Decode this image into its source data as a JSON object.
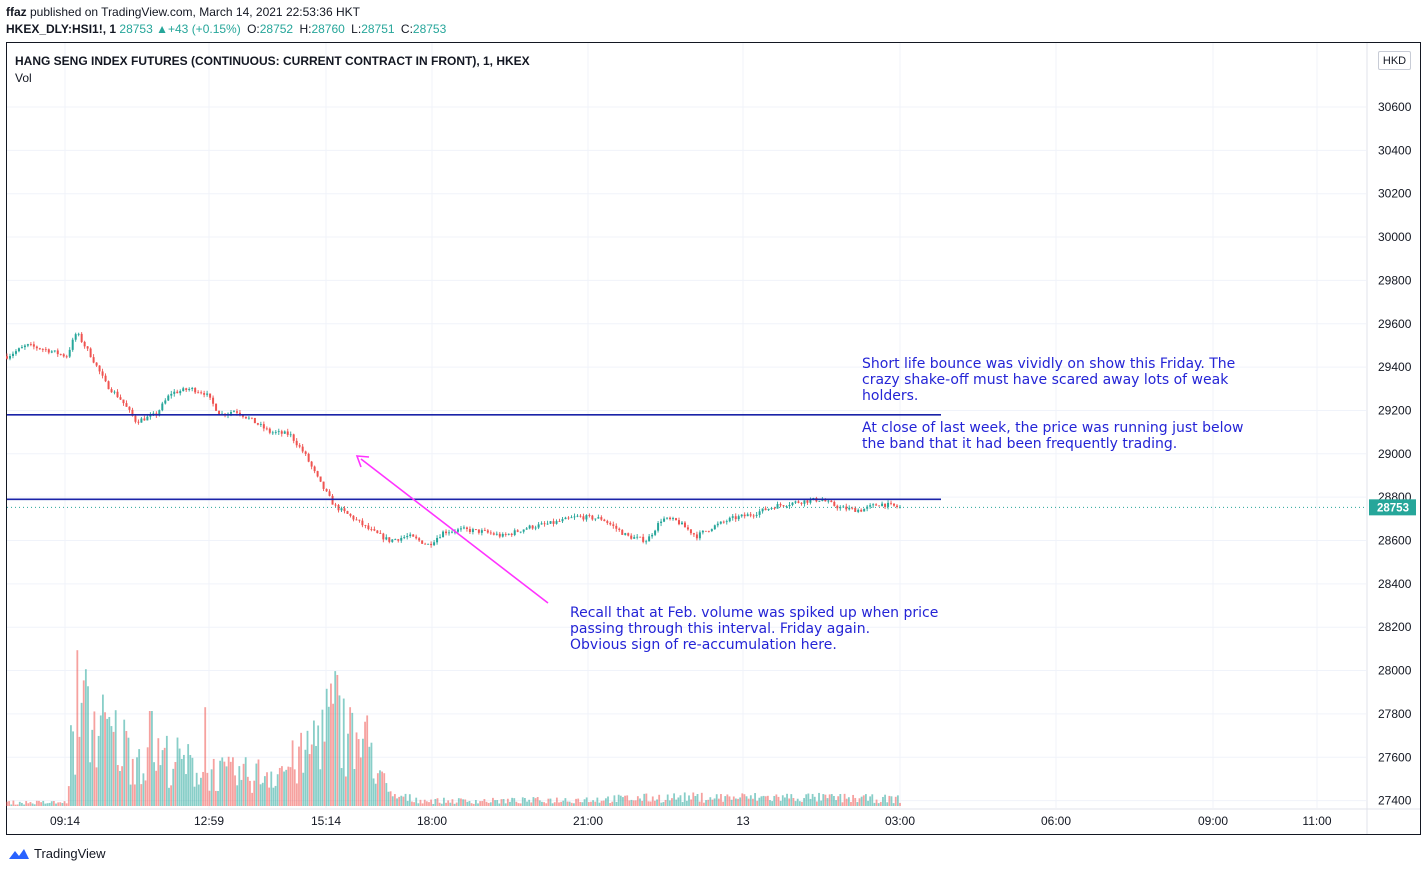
{
  "header": {
    "publisher": "ffaz",
    "published_text": " published on TradingView.com, March 14, 2021 22:53:36 HKT",
    "symbol": "HKEX_DLY:HSI1!, 1",
    "last": "28753",
    "change": "+43 (+0.15%)",
    "open_label": "O:",
    "open": "28752",
    "high_label": "H:",
    "high": "28760",
    "low_label": "L:",
    "low": "28751",
    "close_label": "C:",
    "close": "28753"
  },
  "legend": {
    "title": "HANG SENG INDEX FUTURES (CONTINUOUS: CURRENT CONTRACT IN FRONT), 1, HKEX",
    "volume_label": "Vol"
  },
  "currency": "HKD",
  "annotations": {
    "note1": "Short life bounce was vividly on show this Friday. The\ncrazy shake-off must have scared away lots of weak\nholders.",
    "note2": "At close of last week, the price was running just below\nthe band that it had been frequently trading.",
    "note3": "Recall that at Feb. volume was spiked up when price\npassing through this interval. Friday again.\nObvious sign of re-accumulation here."
  },
  "branding": "TradingView",
  "colors": {
    "up": "#26a69a",
    "down": "#ef5350",
    "band": "#1a23a8",
    "arrow": "#ff33ff",
    "text_note": "#2424d6",
    "last_price": "#26a69a"
  },
  "chart_data": {
    "type": "candlestick",
    "y_axis": {
      "ticks": [
        30600,
        30400,
        30200,
        30000,
        29800,
        29600,
        29400,
        29200,
        29000,
        28800,
        28600,
        28400,
        28200,
        28000,
        27800,
        27600,
        27400
      ],
      "range": [
        27360,
        30720
      ]
    },
    "x_axis": {
      "ticks": [
        "09:14",
        "12:59",
        "15:14",
        "18:00",
        "21:00",
        "13",
        "03:00",
        "06:00",
        "09:00",
        "11:00"
      ]
    },
    "horizontal_lines": [
      29180,
      28790
    ],
    "last_price": 28753,
    "last_price_label": "28753",
    "price_path": [
      [
        0,
        29450
      ],
      [
        4,
        29500
      ],
      [
        8,
        29480
      ],
      [
        12,
        29450
      ],
      [
        14,
        29560
      ],
      [
        17,
        29450
      ],
      [
        20,
        29320
      ],
      [
        23,
        29250
      ],
      [
        26,
        29150
      ],
      [
        30,
        29180
      ],
      [
        33,
        29280
      ],
      [
        37,
        29300
      ],
      [
        40,
        29280
      ],
      [
        43,
        29180
      ],
      [
        46,
        29200
      ],
      [
        49,
        29160
      ],
      [
        53,
        29100
      ],
      [
        57,
        29090
      ],
      [
        60,
        29000
      ],
      [
        63,
        28870
      ],
      [
        66,
        28760
      ],
      [
        70,
        28700
      ],
      [
        73,
        28650
      ],
      [
        77,
        28600
      ],
      [
        81,
        28620
      ],
      [
        85,
        28580
      ],
      [
        88,
        28640
      ],
      [
        92,
        28650
      ],
      [
        96,
        28640
      ],
      [
        100,
        28620
      ],
      [
        105,
        28660
      ],
      [
        110,
        28680
      ],
      [
        115,
        28710
      ],
      [
        120,
        28700
      ],
      [
        125,
        28620
      ],
      [
        129,
        28600
      ],
      [
        132,
        28700
      ],
      [
        135,
        28690
      ],
      [
        139,
        28620
      ],
      [
        142,
        28660
      ],
      [
        146,
        28700
      ],
      [
        150,
        28720
      ],
      [
        155,
        28760
      ],
      [
        160,
        28780
      ],
      [
        164,
        28790
      ],
      [
        168,
        28750
      ],
      [
        172,
        28740
      ],
      [
        176,
        28770
      ],
      [
        180,
        28753
      ]
    ],
    "volume_profile": [
      [
        0,
        0.02
      ],
      [
        12,
        0.02
      ],
      [
        13,
        0.35
      ],
      [
        16,
        0.5
      ],
      [
        20,
        0.42
      ],
      [
        26,
        0.3
      ],
      [
        32,
        0.28
      ],
      [
        38,
        0.22
      ],
      [
        44,
        0.18
      ],
      [
        50,
        0.18
      ],
      [
        56,
        0.22
      ],
      [
        60,
        0.28
      ],
      [
        63,
        0.45
      ],
      [
        66,
        0.55
      ],
      [
        69,
        0.38
      ],
      [
        73,
        0.35
      ],
      [
        77,
        0.06
      ],
      [
        85,
        0.03
      ],
      [
        100,
        0.03
      ],
      [
        120,
        0.04
      ],
      [
        135,
        0.05
      ],
      [
        145,
        0.05
      ],
      [
        160,
        0.05
      ],
      [
        180,
        0.04
      ]
    ],
    "volume_spikes": [
      [
        14,
        0.82
      ],
      [
        16,
        0.72
      ],
      [
        29,
        0.5
      ],
      [
        40,
        0.52
      ],
      [
        66,
        0.71
      ],
      [
        69,
        0.52
      ]
    ]
  }
}
